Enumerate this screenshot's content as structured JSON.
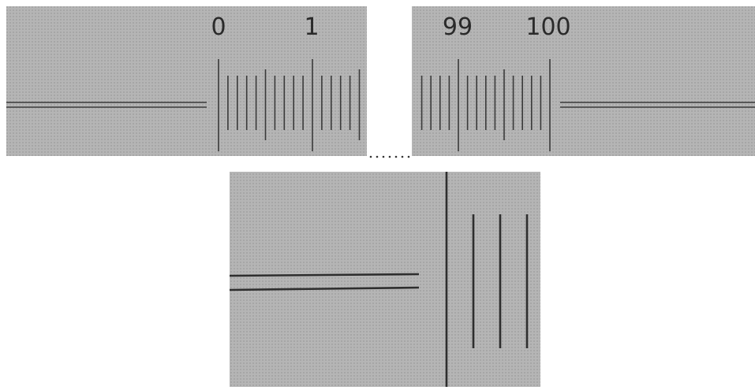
{
  "panels": {
    "left_scale": {
      "labels": [
        "0",
        "1"
      ]
    },
    "right_scale": {
      "labels": [
        "99",
        "100"
      ]
    }
  }
}
